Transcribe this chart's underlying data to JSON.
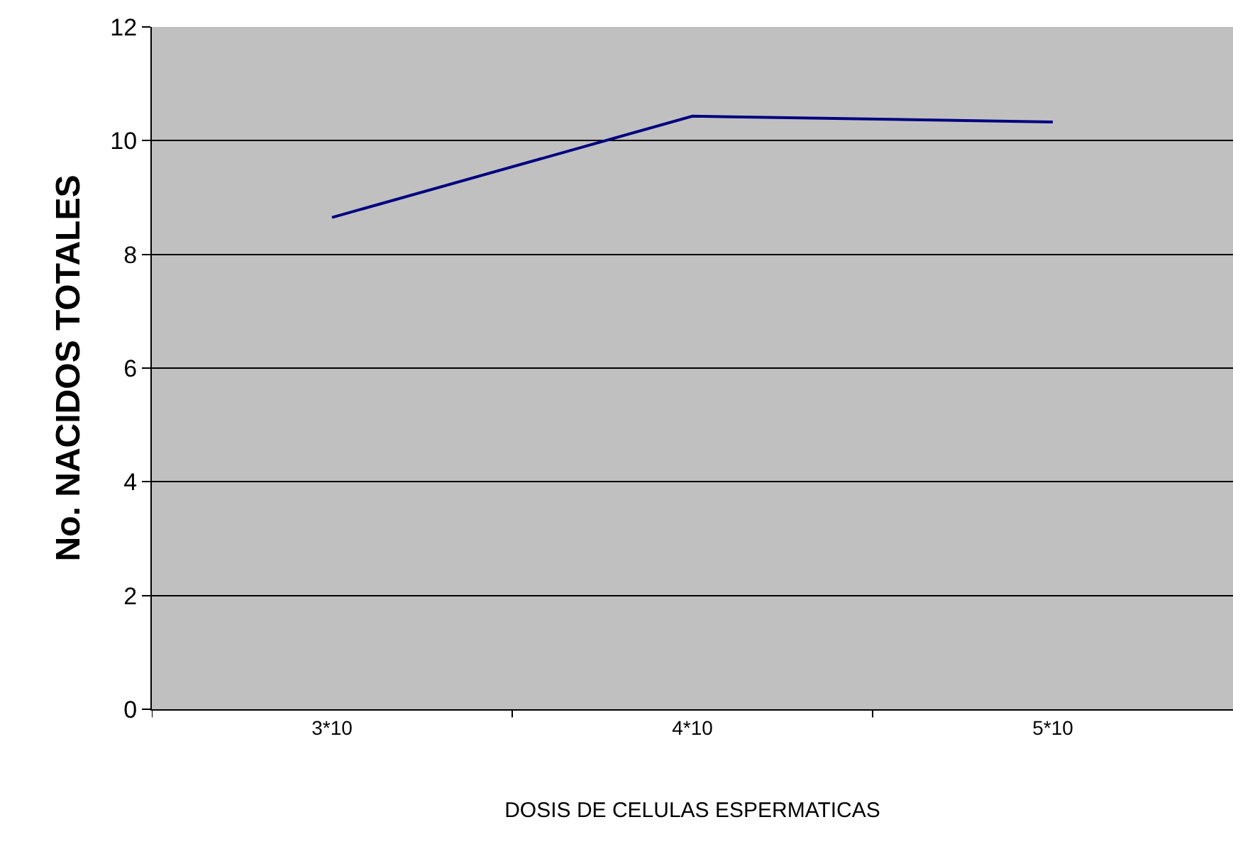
{
  "chart_data": {
    "type": "line",
    "xlabel": "DOSIS DE CELULAS ESPERMATICAS",
    "ylabel": "No. NACIDOS TOTALES",
    "categories": [
      "3*10",
      "4*10",
      "5*10"
    ],
    "series": [
      {
        "color": "#000080",
        "values": [
          8.65,
          10.43,
          10.33
        ]
      }
    ],
    "ylim": [
      0,
      12
    ],
    "yticks": [
      0,
      2,
      4,
      6,
      8,
      10,
      12
    ],
    "grid": "y",
    "marker": "none",
    "line_style": "solid"
  }
}
